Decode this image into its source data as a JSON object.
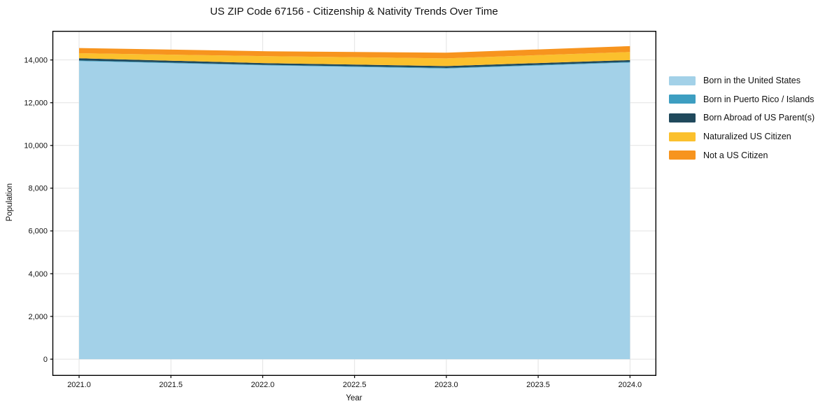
{
  "figure": {
    "background": "#ffffff"
  },
  "chart_data": {
    "type": "area",
    "stacked": true,
    "title": "US ZIP Code 67156 - Citizenship & Nativity Trends Over Time",
    "xlabel": "Year",
    "ylabel": "Population",
    "x": [
      2021,
      2022,
      2023,
      2024
    ],
    "series": [
      {
        "name": "Born in the United States",
        "color": "#a3d1e8",
        "values": [
          13950,
          13750,
          13600,
          13880
        ]
      },
      {
        "name": "Born in Puerto Rico / Islands",
        "color": "#3d9ec1",
        "values": [
          30,
          25,
          30,
          30
        ]
      },
      {
        "name": "Born Abroad of US Parent(s)",
        "color": "#20495c",
        "values": [
          100,
          80,
          85,
          85
        ]
      },
      {
        "name": "Naturalized US Citizen",
        "color": "#fbc02d",
        "values": [
          235,
          325,
          360,
          380
        ]
      },
      {
        "name": "Not a US Citizen",
        "color": "#f7941e",
        "values": [
          245,
          230,
          265,
          275
        ]
      }
    ],
    "xticks": {
      "values": [
        2021.0,
        2021.5,
        2022.0,
        2022.5,
        2023.0,
        2023.5,
        2024.0
      ],
      "labels": [
        "2021.0",
        "2021.5",
        "2022.0",
        "2022.5",
        "2023.0",
        "2023.5",
        "2024.0"
      ]
    },
    "yticks": {
      "values": [
        0,
        2000,
        4000,
        6000,
        8000,
        10000,
        12000,
        14000
      ],
      "labels": [
        "0",
        "2,000",
        "4,000",
        "6,000",
        "8,000",
        "10,000",
        "12,000",
        "14,000"
      ]
    },
    "xlim": [
      2020.857,
      2024.141
    ],
    "ylim": [
      -760,
      15342
    ],
    "grid": true,
    "grid_color": "#e3e3e3",
    "spine_color": "#000000",
    "legend_position": "right-of-plot"
  }
}
